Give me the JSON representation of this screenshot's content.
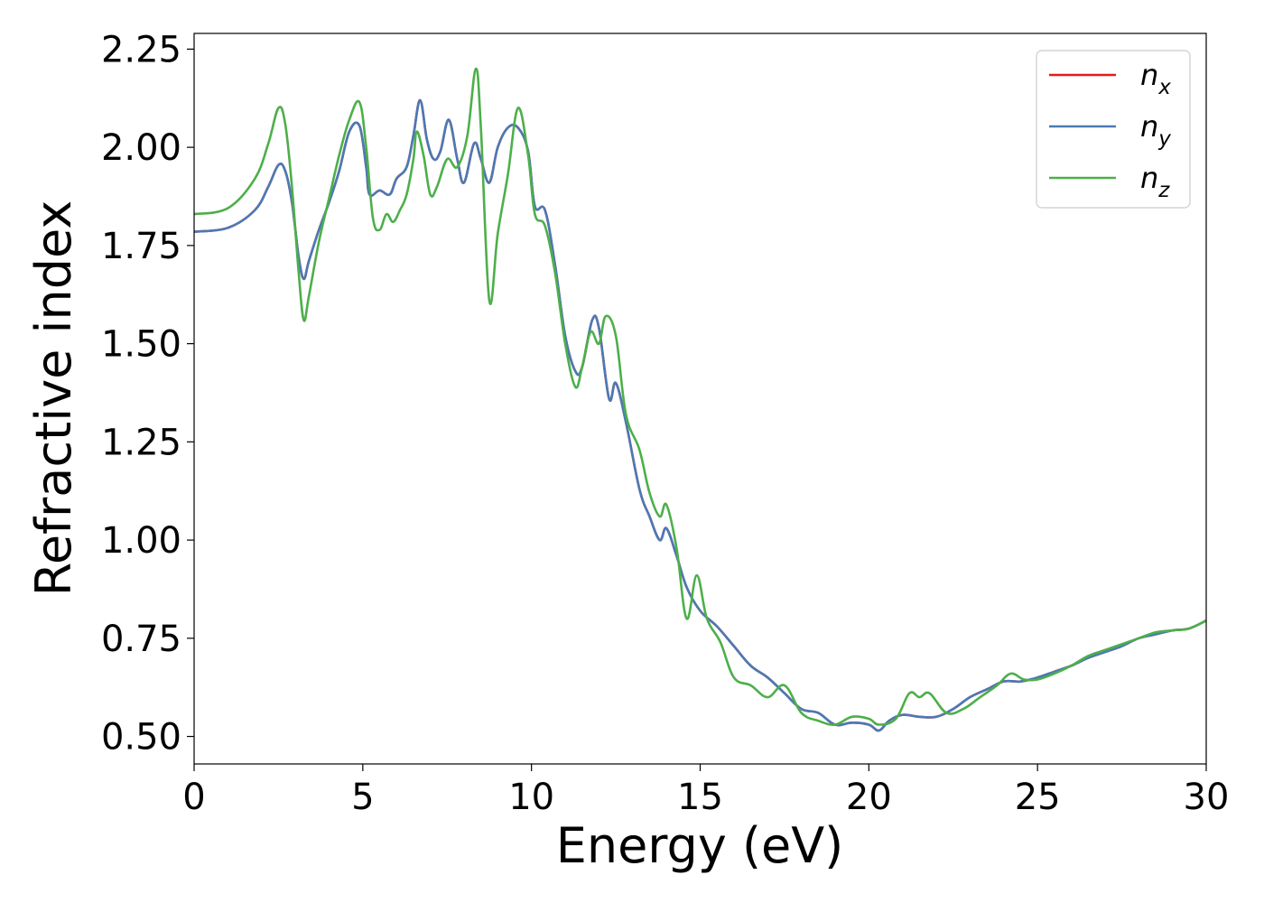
{
  "chart_data": {
    "type": "line",
    "xlabel": "Energy (eV)",
    "ylabel": "Refractive index",
    "xlim": [
      0,
      30
    ],
    "ylim": [
      0.43,
      2.29
    ],
    "xticks": [
      0,
      5,
      10,
      15,
      20,
      25,
      30
    ],
    "yticks": [
      0.5,
      0.75,
      1.0,
      1.25,
      1.5,
      1.75,
      2.0,
      2.25
    ],
    "ytick_labels": [
      "0.50",
      "0.75",
      "1.00",
      "1.25",
      "1.50",
      "1.75",
      "2.00",
      "2.25"
    ],
    "grid": false,
    "legend_position": "top-right",
    "series": [
      {
        "name": "n",
        "subscript": "x",
        "color": "#e41a1c",
        "points": [
          [
            0,
            1.785
          ],
          [
            1,
            1.795
          ],
          [
            1.8,
            1.84
          ],
          [
            2.2,
            1.9
          ],
          [
            2.5,
            1.955
          ],
          [
            2.7,
            1.94
          ],
          [
            2.9,
            1.86
          ],
          [
            3.1,
            1.72
          ],
          [
            3.25,
            1.665
          ],
          [
            3.4,
            1.71
          ],
          [
            3.7,
            1.79
          ],
          [
            4.0,
            1.86
          ],
          [
            4.3,
            1.94
          ],
          [
            4.6,
            2.04
          ],
          [
            4.9,
            2.055
          ],
          [
            5.1,
            1.95
          ],
          [
            5.2,
            1.88
          ],
          [
            5.5,
            1.89
          ],
          [
            5.8,
            1.88
          ],
          [
            6.0,
            1.92
          ],
          [
            6.3,
            1.95
          ],
          [
            6.5,
            2.03
          ],
          [
            6.7,
            2.12
          ],
          [
            6.9,
            2.02
          ],
          [
            7.1,
            1.97
          ],
          [
            7.3,
            1.99
          ],
          [
            7.55,
            2.07
          ],
          [
            7.8,
            1.97
          ],
          [
            8.0,
            1.91
          ],
          [
            8.3,
            2.01
          ],
          [
            8.5,
            1.97
          ],
          [
            8.75,
            1.91
          ],
          [
            9.0,
            2.0
          ],
          [
            9.3,
            2.05
          ],
          [
            9.6,
            2.05
          ],
          [
            9.9,
            1.99
          ],
          [
            10.1,
            1.85
          ],
          [
            10.4,
            1.84
          ],
          [
            10.7,
            1.7
          ],
          [
            11.0,
            1.52
          ],
          [
            11.3,
            1.43
          ],
          [
            11.5,
            1.44
          ],
          [
            11.8,
            1.56
          ],
          [
            12.0,
            1.54
          ],
          [
            12.3,
            1.36
          ],
          [
            12.5,
            1.4
          ],
          [
            12.8,
            1.3
          ],
          [
            13.2,
            1.13
          ],
          [
            13.5,
            1.06
          ],
          [
            13.8,
            1.0
          ],
          [
            14.0,
            1.03
          ],
          [
            14.3,
            0.96
          ],
          [
            14.6,
            0.88
          ],
          [
            15.0,
            0.82
          ],
          [
            15.5,
            0.78
          ],
          [
            16.0,
            0.73
          ],
          [
            16.5,
            0.68
          ],
          [
            17.0,
            0.65
          ],
          [
            17.5,
            0.61
          ],
          [
            18.0,
            0.57
          ],
          [
            18.5,
            0.56
          ],
          [
            19.0,
            0.53
          ],
          [
            19.5,
            0.535
          ],
          [
            20.0,
            0.53
          ],
          [
            20.3,
            0.515
          ],
          [
            20.6,
            0.54
          ],
          [
            21.0,
            0.555
          ],
          [
            21.5,
            0.55
          ],
          [
            22.0,
            0.55
          ],
          [
            22.5,
            0.57
          ],
          [
            23.0,
            0.6
          ],
          [
            23.5,
            0.62
          ],
          [
            24.0,
            0.64
          ],
          [
            24.5,
            0.64
          ],
          [
            25.0,
            0.65
          ],
          [
            25.5,
            0.665
          ],
          [
            26.0,
            0.68
          ],
          [
            26.5,
            0.7
          ],
          [
            27.0,
            0.715
          ],
          [
            27.5,
            0.73
          ],
          [
            28.0,
            0.75
          ],
          [
            28.5,
            0.76
          ],
          [
            29.0,
            0.77
          ],
          [
            29.5,
            0.775
          ],
          [
            30.0,
            0.795
          ]
        ]
      },
      {
        "name": "n",
        "subscript": "y",
        "color": "#4a7ab5",
        "points": [
          [
            0,
            1.785
          ],
          [
            1,
            1.795
          ],
          [
            1.8,
            1.84
          ],
          [
            2.2,
            1.9
          ],
          [
            2.5,
            1.955
          ],
          [
            2.7,
            1.94
          ],
          [
            2.9,
            1.86
          ],
          [
            3.1,
            1.72
          ],
          [
            3.25,
            1.665
          ],
          [
            3.4,
            1.71
          ],
          [
            3.7,
            1.79
          ],
          [
            4.0,
            1.86
          ],
          [
            4.3,
            1.94
          ],
          [
            4.6,
            2.04
          ],
          [
            4.9,
            2.055
          ],
          [
            5.1,
            1.95
          ],
          [
            5.2,
            1.88
          ],
          [
            5.5,
            1.89
          ],
          [
            5.8,
            1.88
          ],
          [
            6.0,
            1.92
          ],
          [
            6.3,
            1.95
          ],
          [
            6.5,
            2.03
          ],
          [
            6.7,
            2.12
          ],
          [
            6.9,
            2.02
          ],
          [
            7.1,
            1.97
          ],
          [
            7.3,
            1.99
          ],
          [
            7.55,
            2.07
          ],
          [
            7.8,
            1.97
          ],
          [
            8.0,
            1.91
          ],
          [
            8.3,
            2.01
          ],
          [
            8.5,
            1.97
          ],
          [
            8.75,
            1.91
          ],
          [
            9.0,
            2.0
          ],
          [
            9.3,
            2.05
          ],
          [
            9.6,
            2.05
          ],
          [
            9.9,
            1.99
          ],
          [
            10.1,
            1.85
          ],
          [
            10.4,
            1.84
          ],
          [
            10.7,
            1.7
          ],
          [
            11.0,
            1.52
          ],
          [
            11.3,
            1.43
          ],
          [
            11.5,
            1.44
          ],
          [
            11.8,
            1.56
          ],
          [
            12.0,
            1.54
          ],
          [
            12.3,
            1.36
          ],
          [
            12.5,
            1.4
          ],
          [
            12.8,
            1.3
          ],
          [
            13.2,
            1.13
          ],
          [
            13.5,
            1.06
          ],
          [
            13.8,
            1.0
          ],
          [
            14.0,
            1.03
          ],
          [
            14.3,
            0.96
          ],
          [
            14.6,
            0.88
          ],
          [
            15.0,
            0.82
          ],
          [
            15.5,
            0.78
          ],
          [
            16.0,
            0.73
          ],
          [
            16.5,
            0.68
          ],
          [
            17.0,
            0.65
          ],
          [
            17.5,
            0.61
          ],
          [
            18.0,
            0.57
          ],
          [
            18.5,
            0.56
          ],
          [
            19.0,
            0.53
          ],
          [
            19.5,
            0.535
          ],
          [
            20.0,
            0.53
          ],
          [
            20.3,
            0.515
          ],
          [
            20.6,
            0.54
          ],
          [
            21.0,
            0.555
          ],
          [
            21.5,
            0.55
          ],
          [
            22.0,
            0.55
          ],
          [
            22.5,
            0.57
          ],
          [
            23.0,
            0.6
          ],
          [
            23.5,
            0.62
          ],
          [
            24.0,
            0.64
          ],
          [
            24.5,
            0.64
          ],
          [
            25.0,
            0.65
          ],
          [
            25.5,
            0.665
          ],
          [
            26.0,
            0.68
          ],
          [
            26.5,
            0.7
          ],
          [
            27.0,
            0.715
          ],
          [
            27.5,
            0.73
          ],
          [
            28.0,
            0.75
          ],
          [
            28.5,
            0.76
          ],
          [
            29.0,
            0.77
          ],
          [
            29.5,
            0.775
          ],
          [
            30.0,
            0.795
          ]
        ]
      },
      {
        "name": "n",
        "subscript": "z",
        "color": "#4daf4a",
        "points": [
          [
            0,
            1.83
          ],
          [
            1,
            1.845
          ],
          [
            1.8,
            1.92
          ],
          [
            2.2,
            2.01
          ],
          [
            2.5,
            2.1
          ],
          [
            2.7,
            2.06
          ],
          [
            2.9,
            1.9
          ],
          [
            3.1,
            1.68
          ],
          [
            3.25,
            1.56
          ],
          [
            3.4,
            1.62
          ],
          [
            3.7,
            1.76
          ],
          [
            4.0,
            1.87
          ],
          [
            4.3,
            1.98
          ],
          [
            4.6,
            2.07
          ],
          [
            4.9,
            2.115
          ],
          [
            5.1,
            2.0
          ],
          [
            5.3,
            1.82
          ],
          [
            5.5,
            1.79
          ],
          [
            5.7,
            1.83
          ],
          [
            5.9,
            1.81
          ],
          [
            6.1,
            1.84
          ],
          [
            6.3,
            1.88
          ],
          [
            6.5,
            1.97
          ],
          [
            6.6,
            2.04
          ],
          [
            6.8,
            1.98
          ],
          [
            7.0,
            1.88
          ],
          [
            7.2,
            1.9
          ],
          [
            7.5,
            1.97
          ],
          [
            7.8,
            1.95
          ],
          [
            8.1,
            2.03
          ],
          [
            8.35,
            2.2
          ],
          [
            8.5,
            2.05
          ],
          [
            8.75,
            1.61
          ],
          [
            9.0,
            1.78
          ],
          [
            9.3,
            1.93
          ],
          [
            9.6,
            2.1
          ],
          [
            9.9,
            1.98
          ],
          [
            10.1,
            1.83
          ],
          [
            10.4,
            1.8
          ],
          [
            10.7,
            1.68
          ],
          [
            11.0,
            1.5
          ],
          [
            11.3,
            1.39
          ],
          [
            11.5,
            1.44
          ],
          [
            11.75,
            1.53
          ],
          [
            12.0,
            1.5
          ],
          [
            12.2,
            1.57
          ],
          [
            12.5,
            1.52
          ],
          [
            12.8,
            1.32
          ],
          [
            13.2,
            1.23
          ],
          [
            13.5,
            1.12
          ],
          [
            13.8,
            1.06
          ],
          [
            14.0,
            1.09
          ],
          [
            14.3,
            0.98
          ],
          [
            14.6,
            0.8
          ],
          [
            14.9,
            0.91
          ],
          [
            15.2,
            0.8
          ],
          [
            15.6,
            0.74
          ],
          [
            16.0,
            0.65
          ],
          [
            16.5,
            0.63
          ],
          [
            17.0,
            0.6
          ],
          [
            17.5,
            0.63
          ],
          [
            18.0,
            0.56
          ],
          [
            18.5,
            0.54
          ],
          [
            19.0,
            0.53
          ],
          [
            19.5,
            0.55
          ],
          [
            20.0,
            0.545
          ],
          [
            20.3,
            0.53
          ],
          [
            20.8,
            0.545
          ],
          [
            21.2,
            0.61
          ],
          [
            21.5,
            0.6
          ],
          [
            21.8,
            0.61
          ],
          [
            22.3,
            0.56
          ],
          [
            22.8,
            0.57
          ],
          [
            23.3,
            0.6
          ],
          [
            23.8,
            0.63
          ],
          [
            24.2,
            0.66
          ],
          [
            24.6,
            0.645
          ],
          [
            25.0,
            0.645
          ],
          [
            25.5,
            0.66
          ],
          [
            26.0,
            0.68
          ],
          [
            26.5,
            0.705
          ],
          [
            27.0,
            0.72
          ],
          [
            27.5,
            0.735
          ],
          [
            28.0,
            0.75
          ],
          [
            28.5,
            0.765
          ],
          [
            29.0,
            0.77
          ],
          [
            29.5,
            0.775
          ],
          [
            30.0,
            0.795
          ]
        ]
      }
    ]
  }
}
